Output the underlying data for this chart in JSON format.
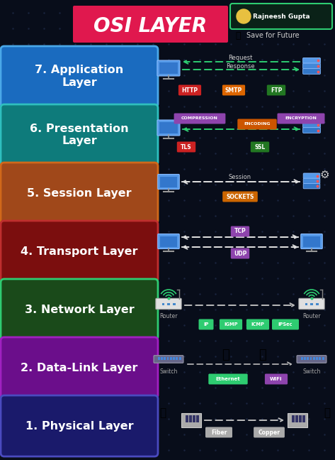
{
  "bg_color": "#080d1a",
  "title": "OSI LAYER",
  "title_bg": "#e0184e",
  "author": "Rajneesh Gupta",
  "author_border": "#2ecc71",
  "save_text": "Save for Future",
  "layers": [
    {
      "name": "7. Application\nLayer",
      "color": "#1a6bbf",
      "border": "#4aa8e8"
    },
    {
      "name": "6. Presentation\nLayer",
      "color": "#0e7b7b",
      "border": "#2ebfbf"
    },
    {
      "name": "5. Session Layer",
      "color": "#a0481a",
      "border": "#d0681a"
    },
    {
      "name": "4. Transport Layer",
      "color": "#7b0e0e",
      "border": "#bf2e2e"
    },
    {
      "name": "3. Network Layer",
      "color": "#1a4a1a",
      "border": "#2ecc71"
    },
    {
      "name": "2. Data-Link Layer",
      "color": "#6b0e8b",
      "border": "#a020c0"
    },
    {
      "name": "1. Physical Layer",
      "color": "#1a1a6b",
      "border": "#4a4abf"
    }
  ]
}
